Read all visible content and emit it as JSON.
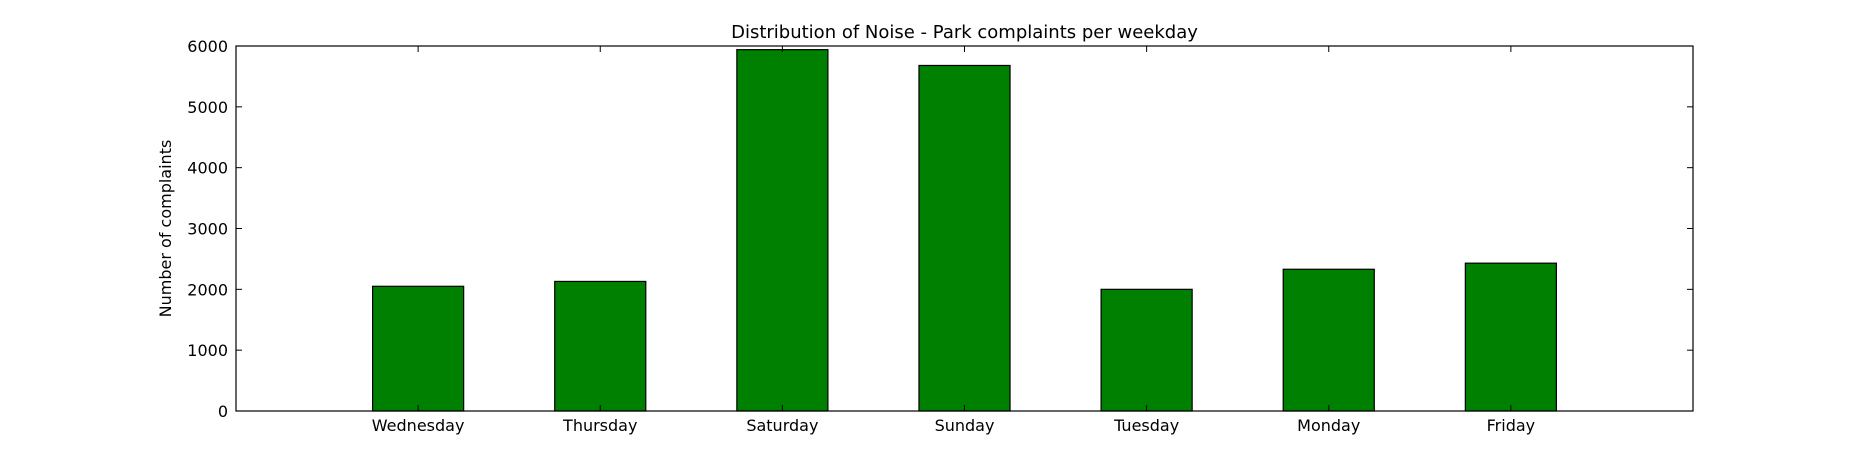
{
  "chart_data": {
    "type": "bar",
    "title": "Distribution of  Noise - Park complaints per weekday",
    "xlabel": "",
    "ylabel": "Number of complaints",
    "categories": [
      "Wednesday",
      "Thursday",
      "Saturday",
      "Sunday",
      "Tuesday",
      "Monday",
      "Friday"
    ],
    "series": [
      {
        "values": [
          2050,
          2130,
          5940,
          5680,
          2000,
          2330,
          2430
        ]
      }
    ],
    "ylim": [
      0,
      6000
    ],
    "yticks": [
      0,
      1000,
      2000,
      3000,
      4000,
      5000,
      6000
    ],
    "grid": false,
    "legend": "none",
    "colors": {
      "bar": "#008000",
      "bar_edge": "#000000",
      "axes": "#000000",
      "background": "#ffffff"
    }
  }
}
